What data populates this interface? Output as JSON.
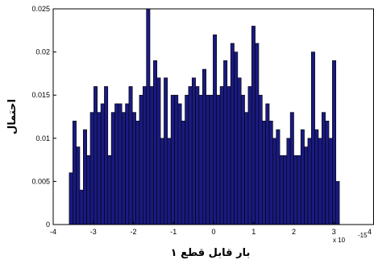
{
  "chart_data": {
    "type": "bar",
    "title": "",
    "xlabel": "بار قابل قطع ۱",
    "ylabel": "احتمال",
    "x_multiplier_label": "x 10",
    "x_multiplier_exponent": "-15",
    "xlim": [
      -4,
      4
    ],
    "ylim": [
      0,
      0.025
    ],
    "xticks": [
      -4,
      -3,
      -2,
      -1,
      0,
      1,
      2,
      3,
      4
    ],
    "xtick_labels": [
      "-4",
      "-3",
      "-2",
      "-1",
      "0",
      "1",
      "2",
      "3",
      "4"
    ],
    "yticks": [
      0,
      0.005,
      0.01,
      0.015,
      0.02,
      0.025
    ],
    "ytick_labels": [
      "0",
      "0.005",
      "0.01",
      "0.015",
      "0.02",
      "0.025"
    ],
    "bin_start": -3.6,
    "bin_width": 0.0875,
    "bar_color": "#1a1a80",
    "bar_edge_color": "#000000",
    "grid": false,
    "values": [
      0.006,
      0.012,
      0.009,
      0.004,
      0.011,
      0.008,
      0.013,
      0.016,
      0.013,
      0.014,
      0.016,
      0.008,
      0.013,
      0.014,
      0.014,
      0.013,
      0.014,
      0.016,
      0.013,
      0.012,
      0.015,
      0.016,
      0.025,
      0.016,
      0.019,
      0.017,
      0.01,
      0.017,
      0.01,
      0.015,
      0.015,
      0.014,
      0.012,
      0.015,
      0.016,
      0.017,
      0.016,
      0.015,
      0.018,
      0.015,
      0.015,
      0.022,
      0.015,
      0.016,
      0.019,
      0.016,
      0.021,
      0.02,
      0.017,
      0.015,
      0.013,
      0.016,
      0.023,
      0.021,
      0.015,
      0.012,
      0.014,
      0.012,
      0.01,
      0.011,
      0.008,
      0.008,
      0.01,
      0.013,
      0.008,
      0.008,
      0.011,
      0.009,
      0.01,
      0.02,
      0.011,
      0.01,
      0.013,
      0.012,
      0.01,
      0.019,
      0.005
    ]
  }
}
